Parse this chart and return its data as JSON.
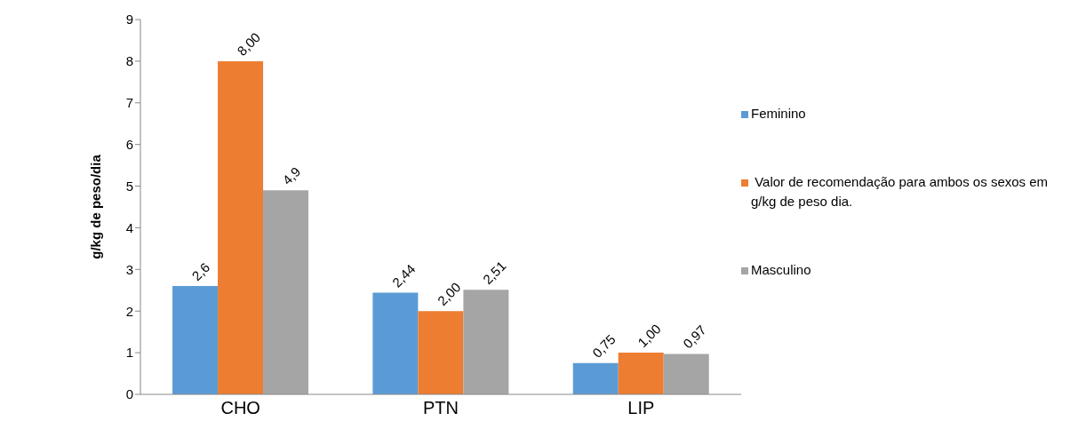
{
  "chart_data": {
    "type": "bar",
    "ylabel": "g/kg de peso/dia",
    "categories": [
      "CHO",
      "PTN",
      "LIP"
    ],
    "series": [
      {
        "name": "Feminino",
        "color": "#5b9bd5",
        "values": [
          2.6,
          2.44,
          0.75
        ],
        "value_labels": [
          "2,6",
          "2,44",
          "0,75"
        ]
      },
      {
        "name": " Valor de recomendação para ambos os sexos em g/kg de peso dia.",
        "color": "#ed7d31",
        "values": [
          8.0,
          2.0,
          1.0
        ],
        "value_labels": [
          "8,00",
          "2,00",
          "1,00"
        ]
      },
      {
        "name": "Masculino",
        "color": "#a5a5a5",
        "values": [
          4.9,
          2.51,
          0.97
        ],
        "value_labels": [
          "4,9",
          "2,51",
          "0,97"
        ]
      }
    ],
    "ylim": [
      0,
      9
    ],
    "yticks": [
      0,
      1,
      2,
      3,
      4,
      5,
      6,
      7,
      8,
      9
    ],
    "grid": false,
    "legend": "right"
  }
}
